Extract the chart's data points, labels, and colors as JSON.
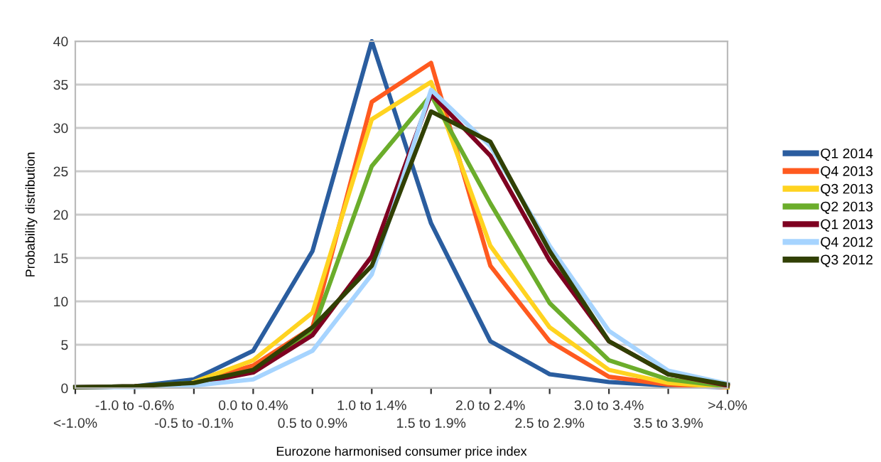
{
  "chart_data": {
    "type": "line",
    "xlabel": "Eurozone harmonised consumer price index",
    "ylabel": "Probability distribution",
    "categories": [
      "<-1.0%",
      "-1.0 to -0.6%",
      "-0.5 to -0.1%",
      "0.0 to 0.4%",
      "0.5 to 0.9%",
      "1.0 to 1.4%",
      "1.5 to 1.9%",
      "2.0 to 2.4%",
      "2.5 to 2.9%",
      "3.0 to 3.4%",
      "3.5 to 3.9%",
      ">4.0%"
    ],
    "series": [
      {
        "name": "Q1 2014",
        "color": "#2a5d9f",
        "values": [
          0.1,
          0.2,
          1.0,
          4.3,
          15.8,
          40,
          19,
          5.4,
          1.6,
          0.7,
          0.3,
          0.1
        ]
      },
      {
        "name": "Q4 2013",
        "color": "#ff5a1f",
        "values": [
          null,
          null,
          0.6,
          2.6,
          7.0,
          33,
          37.5,
          14.1,
          5.4,
          1.3,
          0.4,
          0.1
        ]
      },
      {
        "name": "Q3 2013",
        "color": "#ffd320",
        "values": [
          null,
          null,
          0.7,
          3.2,
          8.7,
          31,
          35.3,
          16.4,
          7.0,
          2.1,
          0.6,
          0.1
        ]
      },
      {
        "name": "Q2 2013",
        "color": "#6bad2b",
        "values": [
          0.1,
          0.2,
          0.6,
          2.1,
          6.5,
          25.6,
          33.8,
          21.3,
          9.8,
          3.2,
          1.0,
          0.2
        ]
      },
      {
        "name": "Q1 2013",
        "color": "#7e0021",
        "values": [
          0.1,
          0.2,
          0.5,
          1.8,
          6.1,
          15.2,
          33.9,
          26.8,
          14.7,
          5.4,
          1.6,
          0.3
        ]
      },
      {
        "name": "Q4 2012",
        "color": "#a6d4ff",
        "values": [
          0.1,
          0.1,
          0.3,
          1.0,
          4.3,
          13.1,
          34.4,
          27.9,
          16.4,
          6.6,
          2.0,
          0.5
        ]
      },
      {
        "name": "Q3 2012",
        "color": "#314004",
        "values": [
          0.1,
          0.2,
          0.6,
          2.1,
          7.0,
          14.1,
          31.9,
          28.4,
          15.8,
          5.4,
          1.6,
          0.4
        ]
      }
    ],
    "ylim": [
      0,
      40
    ],
    "yticks": [
      0,
      5,
      10,
      15,
      20,
      25,
      30,
      35,
      40
    ],
    "grid": "y",
    "legend": "right",
    "marker": "none",
    "line_style": "solid"
  }
}
